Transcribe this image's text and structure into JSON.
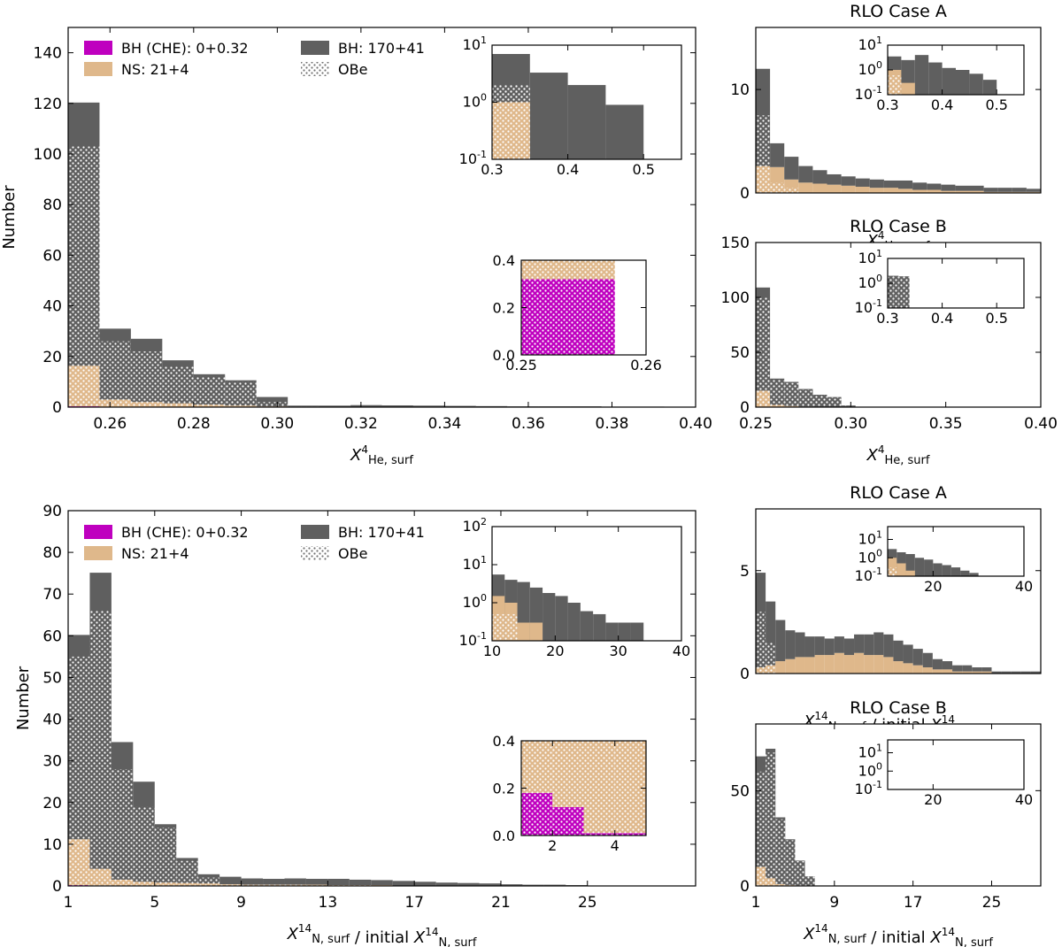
{
  "colors": {
    "bh_che": "#bf00bf",
    "ns": "#dfb88b",
    "bh": "#5f5f5f",
    "obe_dots": "#ffffff"
  },
  "legend": {
    "bh_che": "BH (CHE):  0+0.32",
    "ns": "NS: 21+4",
    "bh": "BH: 170+41",
    "obe": "OBe"
  },
  "chart_data": [
    {
      "panel": "top-main",
      "type": "bar",
      "stacked": true,
      "xlabel_main": "X",
      "xlabel_sup": "4",
      "xlabel_sub": "He, surf",
      "ylabel": "Number",
      "xlim": [
        0.25,
        0.4
      ],
      "ylim": [
        0,
        150
      ],
      "xticks": [
        "0.26",
        "0.28",
        "0.30",
        "0.32",
        "0.34",
        "0.36",
        "0.38",
        "0.40"
      ],
      "yticks": [
        "0",
        "20",
        "40",
        "60",
        "80",
        "100",
        "120",
        "140"
      ],
      "bin_edges": [
        0.25,
        0.2575,
        0.265,
        0.2725,
        0.28,
        0.2875,
        0.295,
        0.3025,
        0.31,
        0.3175,
        0.325,
        0.3325,
        0.34,
        0.3475,
        0.355,
        0.3625,
        0.37,
        0.3775,
        0.385,
        0.3925,
        0.4
      ],
      "series": [
        {
          "name": "BH (CHE):  0+0.32",
          "values": [
            0.32,
            0,
            0,
            0,
            0,
            0,
            0,
            0,
            0,
            0,
            0,
            0,
            0,
            0,
            0,
            0,
            0,
            0,
            0,
            0
          ]
        },
        {
          "name": "NS: 21+4",
          "values": [
            16,
            3,
            2,
            1.5,
            1,
            0.6,
            0.3,
            0.2,
            0.1,
            0.1,
            0.1,
            0.1,
            0.1,
            0.1,
            0,
            0,
            0,
            0,
            0,
            0
          ]
        },
        {
          "name": "BH: 170+41",
          "values": [
            104,
            28,
            25,
            17,
            12,
            10,
            3.7,
            0.4,
            0.5,
            0.7,
            0.6,
            0.5,
            0.4,
            0.3,
            0.3,
            0.3,
            0.3,
            0.2,
            0.2,
            0
          ]
        }
      ],
      "obe_values": [
        103,
        26,
        22,
        16,
        12,
        10,
        2,
        0.3,
        0.2,
        0.2,
        0.1,
        0,
        0,
        0,
        0,
        0,
        0,
        0,
        0,
        0
      ]
    },
    {
      "panel": "top-main-inset-log",
      "type": "bar",
      "stacked": true,
      "log_y": true,
      "xlim": [
        0.3,
        0.55
      ],
      "ylim": [
        0.1,
        10
      ],
      "xticks": [
        "0.3",
        "0.4",
        "0.5"
      ],
      "bin_edges": [
        0.3,
        0.35,
        0.4,
        0.45,
        0.5
      ],
      "series": [
        {
          "name": "NS: 21+4",
          "values": [
            1.0,
            0.1,
            0,
            0
          ]
        },
        {
          "name": "BH: 170+41",
          "values": [
            7.0,
            3.3,
            2.0,
            0.9
          ]
        }
      ],
      "obe_values": [
        2.0,
        0,
        0,
        0
      ]
    },
    {
      "panel": "top-main-inset-lin",
      "type": "bar",
      "stacked": true,
      "xlim": [
        0.25,
        0.26
      ],
      "ylim": [
        0,
        0.4
      ],
      "xticks": [
        "0.25",
        "0.26"
      ],
      "yticks": [
        "0.0",
        "0.2",
        "0.4"
      ],
      "bin_edges": [
        0.25,
        0.2575,
        0.265
      ],
      "series": [
        {
          "name": "BH (CHE):  0+0.32",
          "values": [
            0.32,
            0
          ]
        },
        {
          "name": "NS: 21+4",
          "values": [
            0.08,
            0
          ]
        }
      ],
      "obe_values": [
        0.4,
        0
      ]
    },
    {
      "panel": "top-right-A",
      "type": "bar",
      "stacked": true,
      "title": "RLO Case A",
      "xlabel_main": "X",
      "xlabel_sup": "4",
      "xlabel_sub": "He, surf",
      "xlim": [
        0.25,
        0.4
      ],
      "ylim": [
        0,
        16
      ],
      "yticks": [
        "0",
        "10"
      ],
      "bin_edges": [
        0.25,
        0.2575,
        0.265,
        0.2725,
        0.28,
        0.2875,
        0.295,
        0.3025,
        0.31,
        0.3175,
        0.325,
        0.3325,
        0.34,
        0.3475,
        0.355,
        0.3625,
        0.37,
        0.3775,
        0.385,
        0.3925,
        0.4
      ],
      "series": [
        {
          "name": "NS: 21+4",
          "values": [
            2.6,
            2.5,
            1.3,
            1.0,
            0.9,
            0.8,
            0.7,
            0.6,
            0.5,
            0.5,
            0.4,
            0.3,
            0.3,
            0.2,
            0.2,
            0.2,
            0.1,
            0.1,
            0.1,
            0.1
          ]
        },
        {
          "name": "BH: 170+41",
          "values": [
            9.4,
            2.3,
            2.2,
            1.6,
            1.3,
            1.0,
            0.9,
            0.8,
            0.8,
            0.7,
            0.8,
            0.7,
            0.6,
            0.6,
            0.5,
            0.5,
            0.4,
            0.4,
            0.4,
            0.3
          ]
        }
      ],
      "obe_values": [
        7.5,
        1.0,
        0.5,
        0,
        0,
        0,
        0,
        0,
        0,
        0,
        0,
        0,
        0,
        0,
        0,
        0,
        0,
        0,
        0,
        0
      ]
    },
    {
      "panel": "top-right-A-inset",
      "type": "bar",
      "log_y": true,
      "xlim": [
        0.3,
        0.55
      ],
      "ylim": [
        0.1,
        10
      ],
      "xticks": [
        "0.3",
        "0.4",
        "0.5"
      ],
      "bin_edges": [
        0.3,
        0.325,
        0.35,
        0.375,
        0.4,
        0.425,
        0.45,
        0.475,
        0.5
      ],
      "series": [
        {
          "name": "NS: 21+4",
          "values": [
            1.0,
            0.3,
            0,
            0,
            0,
            0,
            0,
            0
          ]
        },
        {
          "name": "BH: 170+41",
          "values": [
            3.5,
            2.5,
            4.0,
            2.0,
            1.2,
            1.0,
            0.7,
            0.4
          ]
        }
      ],
      "obe_values": [
        0.6,
        0,
        0,
        0,
        0,
        0,
        0,
        0
      ]
    },
    {
      "panel": "top-right-B",
      "type": "bar",
      "stacked": true,
      "title": "RLO Case B",
      "xlabel_main": "X",
      "xlabel_sup": "4",
      "xlabel_sub": "He, surf",
      "xlim": [
        0.25,
        0.4
      ],
      "ylim": [
        0,
        150
      ],
      "xticks": [
        "0.25",
        "0.30",
        "0.35",
        "0.40"
      ],
      "yticks": [
        "0",
        "50",
        "100",
        "150"
      ],
      "bin_edges": [
        0.25,
        0.2575,
        0.265,
        0.2725,
        0.28,
        0.2875,
        0.295,
        0.3025
      ],
      "series": [
        {
          "name": "NS: 21+4",
          "values": [
            15,
            2,
            1,
            0.5,
            0.3,
            0.2,
            0
          ]
        },
        {
          "name": "BH: 170+41",
          "values": [
            94,
            24,
            22,
            16,
            11,
            9,
            1.5
          ]
        }
      ],
      "obe_values": [
        100,
        25,
        22,
        16,
        11,
        9,
        1.5
      ]
    },
    {
      "panel": "top-right-B-inset",
      "type": "bar",
      "log_y": true,
      "xlim": [
        0.3,
        0.55
      ],
      "ylim": [
        0.1,
        10
      ],
      "xticks": [
        "0.3",
        "0.4",
        "0.5"
      ],
      "bin_edges": [
        0.3,
        0.31,
        0.32,
        0.33,
        0.34
      ],
      "series": [
        {
          "name": "BH: 170+41",
          "values": [
            2.0,
            2.0,
            1.9,
            1.9
          ]
        }
      ],
      "obe_values": [
        2.0,
        2.0,
        1.9,
        1.9
      ]
    },
    {
      "panel": "bottom-main",
      "type": "bar",
      "stacked": true,
      "xlabel_main": "X",
      "xlabel_sup": "14",
      "xlabel_sub": "N, surf",
      "xlabel_mid": " / initial ",
      "ylabel": "Number",
      "xlim": [
        1,
        30
      ],
      "ylim": [
        0,
        90
      ],
      "xticks": [
        "1",
        "5",
        "9",
        "13",
        "17",
        "21",
        "25"
      ],
      "yticks": [
        "0",
        "10",
        "20",
        "30",
        "40",
        "50",
        "60",
        "70",
        "80",
        "90"
      ],
      "bin_edges": [
        1,
        2,
        3,
        4,
        5,
        6,
        7,
        8,
        9,
        10,
        11,
        12,
        13,
        14,
        15,
        16,
        17,
        18,
        19,
        20,
        21,
        22,
        23,
        24,
        25
      ],
      "series": [
        {
          "name": "BH (CHE):  0+0.32",
          "values": [
            0.2,
            0.12,
            0,
            0,
            0,
            0,
            0,
            0,
            0,
            0,
            0,
            0,
            0,
            0,
            0,
            0,
            0,
            0,
            0,
            0,
            0,
            0,
            0,
            0
          ]
        },
        {
          "name": "NS: 21+4",
          "values": [
            11,
            4,
            1.5,
            1,
            0.8,
            0.7,
            0.6,
            0.4,
            0.3,
            0.3,
            0.3,
            0.3,
            0.2,
            0.2,
            0.2,
            0.1,
            0.1,
            0.1,
            0.1,
            0.1,
            0,
            0,
            0,
            0
          ]
        },
        {
          "name": "BH: 170+41",
          "values": [
            49,
            71,
            33,
            24,
            14,
            6,
            2.2,
            1.8,
            1.5,
            1.4,
            1.5,
            1.4,
            1.5,
            1.3,
            1.2,
            1.1,
            0.9,
            0.7,
            0.6,
            0.5,
            0.4,
            0.3,
            0.3,
            0.2
          ]
        }
      ],
      "obe_values": [
        55,
        66,
        28,
        19,
        14,
        6,
        2,
        0.3,
        0.3,
        0.3,
        0.3,
        0.2,
        0.2,
        0.2,
        0,
        0,
        0,
        0,
        0,
        0,
        0,
        0,
        0,
        0
      ]
    },
    {
      "panel": "bottom-main-inset-log",
      "type": "bar",
      "stacked": true,
      "log_y": true,
      "xlim": [
        10,
        40
      ],
      "ylim": [
        0.1,
        100
      ],
      "xticks": [
        "10",
        "20",
        "30",
        "40"
      ],
      "bin_edges": [
        10,
        12,
        14,
        16,
        18,
        20,
        22,
        24,
        26,
        28,
        30,
        32,
        34
      ],
      "series": [
        {
          "name": "NS: 21+4",
          "values": [
            1.5,
            1.0,
            0.3,
            0.3,
            0,
            0,
            0,
            0,
            0,
            0,
            0,
            0
          ]
        },
        {
          "name": "BH: 170+41",
          "values": [
            5.5,
            4.0,
            3.5,
            2.5,
            1.8,
            1.5,
            1.0,
            0.6,
            0.5,
            0.3,
            0.3,
            0.3
          ]
        }
      ],
      "obe_values": [
        0.5,
        0.5,
        0,
        0,
        0,
        0,
        0,
        0,
        0,
        0,
        0,
        0
      ]
    },
    {
      "panel": "bottom-main-inset-lin",
      "type": "bar",
      "stacked": true,
      "xlim": [
        1,
        5
      ],
      "ylim": [
        0,
        0.4
      ],
      "xticks": [
        "2",
        "4"
      ],
      "yticks": [
        "0.0",
        "0.2",
        "0.4"
      ],
      "bin_edges": [
        1,
        2,
        3,
        4,
        5
      ],
      "series": [
        {
          "name": "BH (CHE):  0+0.32",
          "values": [
            0.18,
            0.12,
            0.01,
            0.01
          ]
        },
        {
          "name": "NS: 21+4",
          "values": [
            0.22,
            0.28,
            0.39,
            0.39
          ]
        }
      ],
      "obe_values": [
        0.4,
        0.4,
        0.4,
        0.4
      ]
    },
    {
      "panel": "bottom-right-A",
      "type": "bar",
      "stacked": true,
      "title": "RLO Case A",
      "xlabel_main": "X",
      "xlabel_sup": "14",
      "xlabel_sub": "N, surf",
      "xlabel_mid": " / initial ",
      "xlim": [
        1,
        30
      ],
      "ylim": [
        0,
        8
      ],
      "yticks": [
        "0",
        "5"
      ],
      "bin_edges": [
        1,
        2,
        3,
        4,
        5,
        6,
        7,
        8,
        9,
        10,
        11,
        12,
        13,
        14,
        15,
        16,
        17,
        18,
        19,
        20,
        21,
        22,
        23,
        24,
        25,
        26,
        27,
        28,
        29,
        30
      ],
      "series": [
        {
          "name": "NS: 21+4",
          "values": [
            0.3,
            0.4,
            0.6,
            0.7,
            0.8,
            0.8,
            0.9,
            0.9,
            1.0,
            0.9,
            1.0,
            0.9,
            0.9,
            0.8,
            0.6,
            0.5,
            0.4,
            0.3,
            0.2,
            0.2,
            0.1,
            0.1,
            0.1,
            0.1,
            0,
            0,
            0,
            0,
            0
          ]
        },
        {
          "name": "BH: 170+41",
          "values": [
            4.6,
            3.1,
            2.0,
            1.4,
            1.2,
            1.0,
            0.9,
            0.8,
            0.8,
            0.8,
            0.9,
            1.0,
            1.1,
            1.1,
            1.0,
            0.9,
            0.8,
            0.7,
            0.5,
            0.4,
            0.3,
            0.3,
            0.2,
            0.2,
            0.1,
            0.1,
            0.1,
            0.1,
            0.1
          ]
        }
      ],
      "obe_values": [
        3.0,
        1.5,
        0,
        0,
        0,
        0,
        0,
        0,
        0,
        0,
        0,
        0,
        0,
        0,
        0,
        0,
        0,
        0,
        0,
        0,
        0,
        0,
        0,
        0,
        0,
        0,
        0,
        0,
        0
      ]
    },
    {
      "panel": "bottom-right-A-inset",
      "type": "bar",
      "log_y": true,
      "xlim": [
        10,
        40
      ],
      "ylim": [
        0.1,
        50
      ],
      "xticks": [
        "20",
        "40"
      ],
      "bin_edges": [
        10,
        12,
        14,
        16,
        18,
        20,
        22,
        24,
        26,
        28,
        30
      ],
      "series": [
        {
          "name": "NS: 21+4",
          "values": [
            1.0,
            0.5,
            0.2,
            0,
            0,
            0,
            0,
            0,
            0,
            0
          ]
        },
        {
          "name": "BH: 170+41",
          "values": [
            3.0,
            2.0,
            1.6,
            1.0,
            0.8,
            0.5,
            0.4,
            0.3,
            0.2,
            0.15
          ]
        }
      ],
      "obe_values": [
        0.3,
        0,
        0,
        0,
        0,
        0,
        0,
        0,
        0,
        0
      ]
    },
    {
      "panel": "bottom-right-B",
      "type": "bar",
      "stacked": true,
      "title": "RLO Case B",
      "xlabel_main": "X",
      "xlabel_sup": "14",
      "xlabel_sub": "N, surf",
      "xlabel_mid": " / initial ",
      "xlim": [
        1,
        30
      ],
      "ylim": [
        0,
        85
      ],
      "xticks": [
        "1",
        "9",
        "17",
        "25"
      ],
      "yticks": [
        "0",
        "50"
      ],
      "bin_edges": [
        1,
        2,
        3,
        4,
        5,
        6,
        7
      ],
      "series": [
        {
          "name": "NS: 21+4",
          "values": [
            10,
            4,
            1,
            0.5,
            0.3,
            0
          ]
        },
        {
          "name": "BH: 170+41",
          "values": [
            58,
            68,
            35,
            24,
            13,
            5
          ]
        }
      ],
      "obe_values": [
        60,
        70,
        35,
        24,
        13,
        5
      ]
    },
    {
      "panel": "bottom-right-B-inset",
      "type": "bar",
      "log_y": true,
      "xlim": [
        10,
        40
      ],
      "ylim": [
        0.1,
        50
      ],
      "xticks": [
        "20",
        "40"
      ],
      "bin_edges": [],
      "series": [],
      "obe_values": []
    }
  ]
}
